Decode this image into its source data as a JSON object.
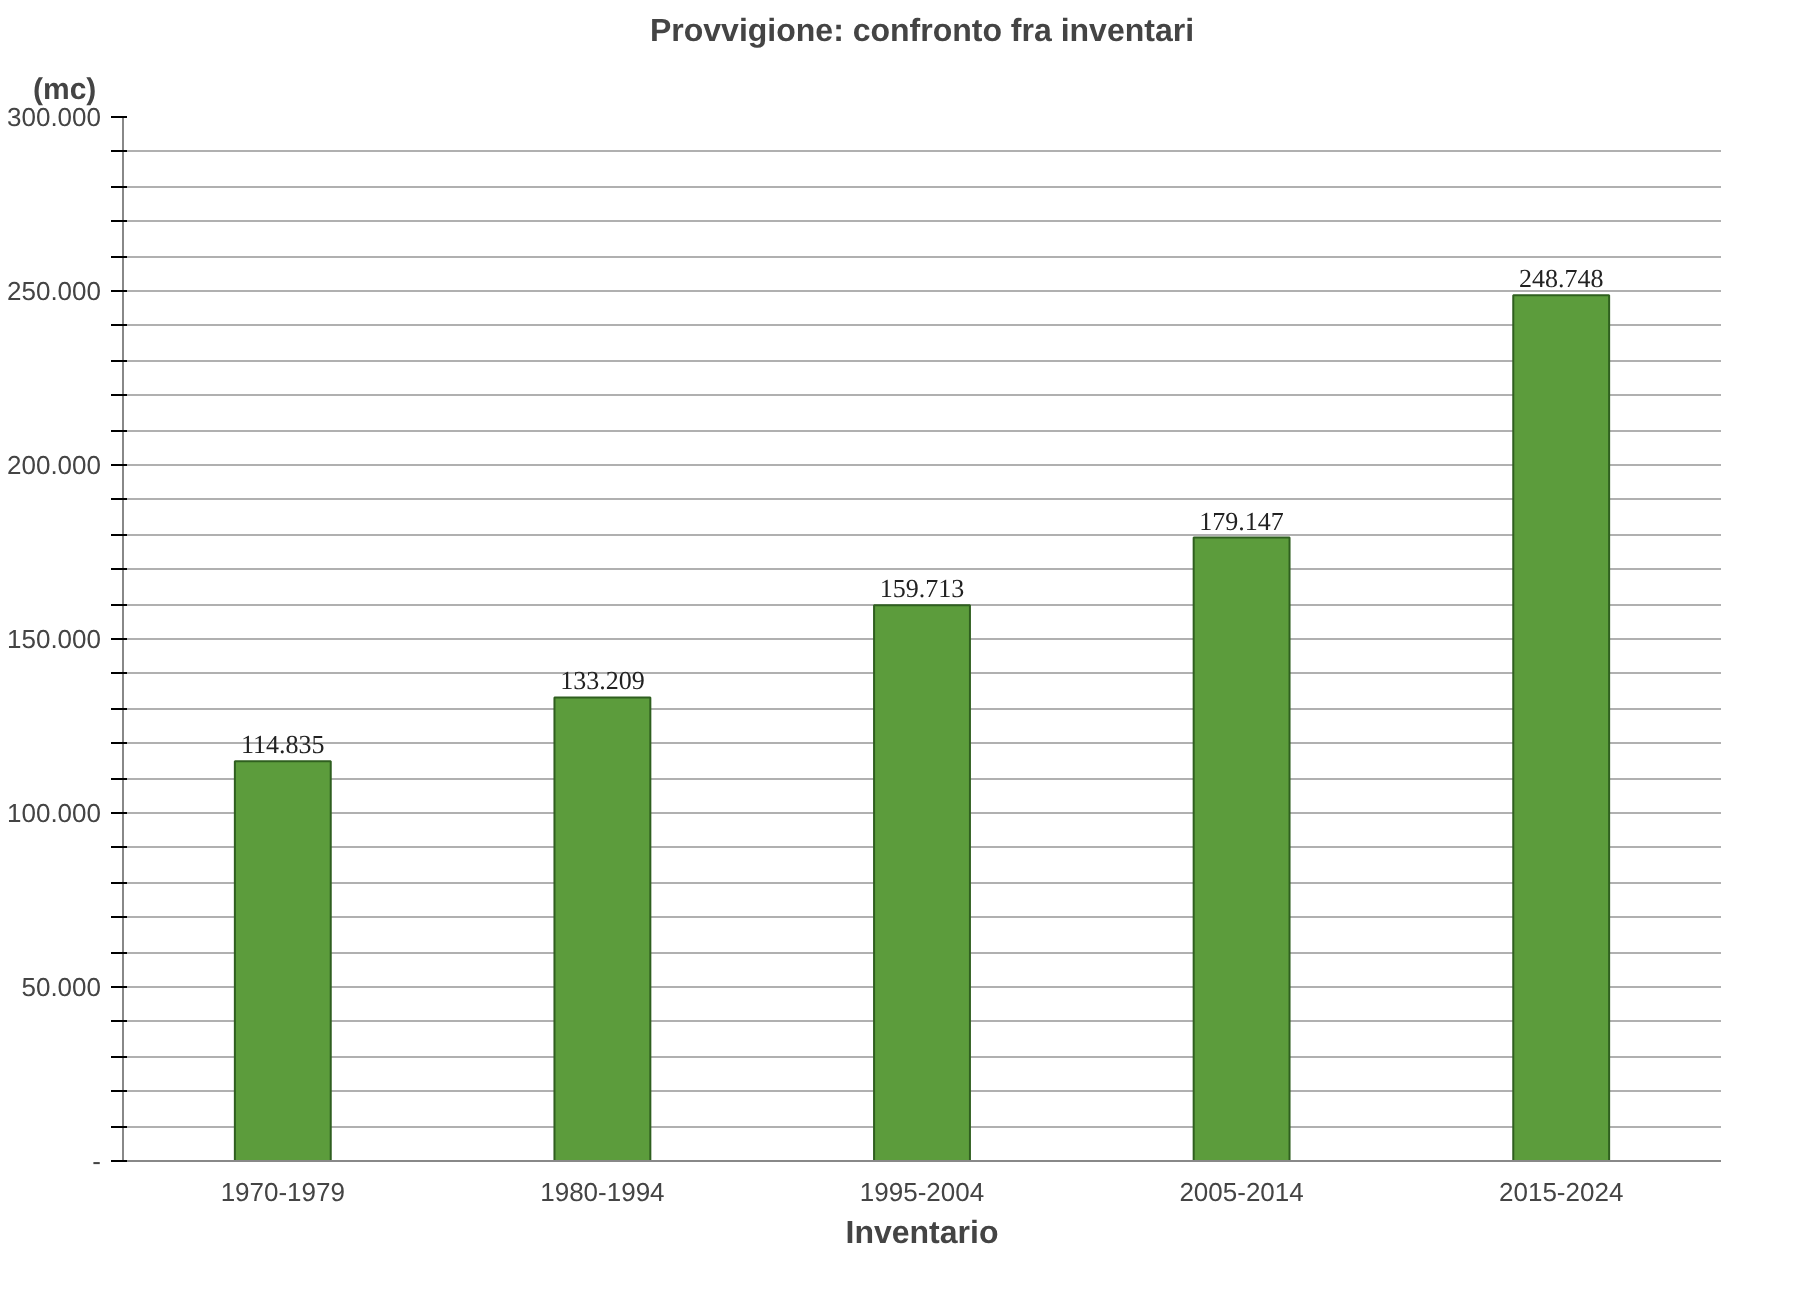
{
  "chart_data": {
    "type": "bar",
    "title": "Provvigione: confronto fra inventari",
    "xlabel": "Inventario",
    "ylabel": "(mc)",
    "categories": [
      "1970-1979",
      "1980-1994",
      "1995-2004",
      "2005-2014",
      "2015-2024"
    ],
    "values": [
      114835,
      133209,
      159713,
      179147,
      248748
    ],
    "value_labels": [
      "114.835",
      "133.209",
      "159.713",
      "179.147",
      "248.748"
    ],
    "color": "#5c9c3c",
    "ylim": [
      0,
      300000
    ],
    "yticks": [
      {
        "value": 0,
        "label": "-"
      },
      {
        "value": 10000,
        "label": null
      },
      {
        "value": 20000,
        "label": null
      },
      {
        "value": 30000,
        "label": null
      },
      {
        "value": 40000,
        "label": null
      },
      {
        "value": 50000,
        "label": "50.000"
      },
      {
        "value": 60000,
        "label": null
      },
      {
        "value": 70000,
        "label": null
      },
      {
        "value": 80000,
        "label": null
      },
      {
        "value": 90000,
        "label": null
      },
      {
        "value": 100000,
        "label": "100.000"
      },
      {
        "value": 110000,
        "label": null
      },
      {
        "value": 120000,
        "label": null
      },
      {
        "value": 130000,
        "label": null
      },
      {
        "value": 140000,
        "label": null
      },
      {
        "value": 150000,
        "label": "150.000"
      },
      {
        "value": 160000,
        "label": null
      },
      {
        "value": 170000,
        "label": null
      },
      {
        "value": 180000,
        "label": null
      },
      {
        "value": 190000,
        "label": null
      },
      {
        "value": 200000,
        "label": "200.000"
      },
      {
        "value": 210000,
        "label": null
      },
      {
        "value": 220000,
        "label": null
      },
      {
        "value": 230000,
        "label": null
      },
      {
        "value": 240000,
        "label": null
      },
      {
        "value": 250000,
        "label": "250.000"
      },
      {
        "value": 260000,
        "label": null
      },
      {
        "value": 270000,
        "label": null
      },
      {
        "value": 280000,
        "label": null
      },
      {
        "value": 290000,
        "label": null
      },
      {
        "value": 300000,
        "label": "300.000"
      }
    ],
    "grid": "y"
  }
}
